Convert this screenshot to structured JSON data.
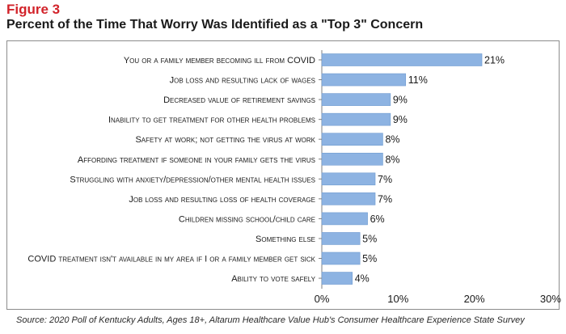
{
  "figure_label": "Figure 3",
  "figure_title": "Percent of the Time That Worry Was Identified as a \"Top 3\" Concern",
  "source": "Source: 2020 Poll of Kentucky Adults, Ages 18+, Altarum Healthcare Value Hub's Consumer Healthcare Experience State Survey",
  "colors": {
    "bar": "#8db3e2",
    "bar_stroke": "#6f9bd0",
    "axis": "#7f7f7f",
    "accent": "#d2232a"
  },
  "chart_data": {
    "type": "bar",
    "orientation": "horizontal",
    "categories": [
      "You or a family member becoming ill from COVID",
      "Job loss and resulting lack of wages",
      "Decreased value of retirement savings",
      "Inability to get treatment for other health problems",
      "Safety at work; not getting the virus at work",
      "Affording treatment if someone in your family gets the virus",
      "Struggling with anxiety/depression/other mental health issues",
      "Job loss and resulting loss of health coverage",
      "Children missing school/child care",
      "Something else",
      "COVID treatment isn't available in my area if I or a family member get sick",
      "Ability to vote safely"
    ],
    "values": [
      21,
      11,
      9,
      9,
      8,
      8,
      7,
      7,
      6,
      5,
      5,
      4
    ],
    "data_labels": [
      "21%",
      "11%",
      "9%",
      "9%",
      "8%",
      "8%",
      "7%",
      "7%",
      "6%",
      "5%",
      "5%",
      "4%"
    ],
    "xlim": [
      0,
      30
    ],
    "xticks": [
      0,
      10,
      20,
      30
    ],
    "xtick_labels": [
      "0%",
      "10%",
      "20%",
      "30%"
    ],
    "title": "Percent of the Time That Worry Was Identified as a \"Top 3\" Concern",
    "xlabel": "",
    "ylabel": ""
  }
}
